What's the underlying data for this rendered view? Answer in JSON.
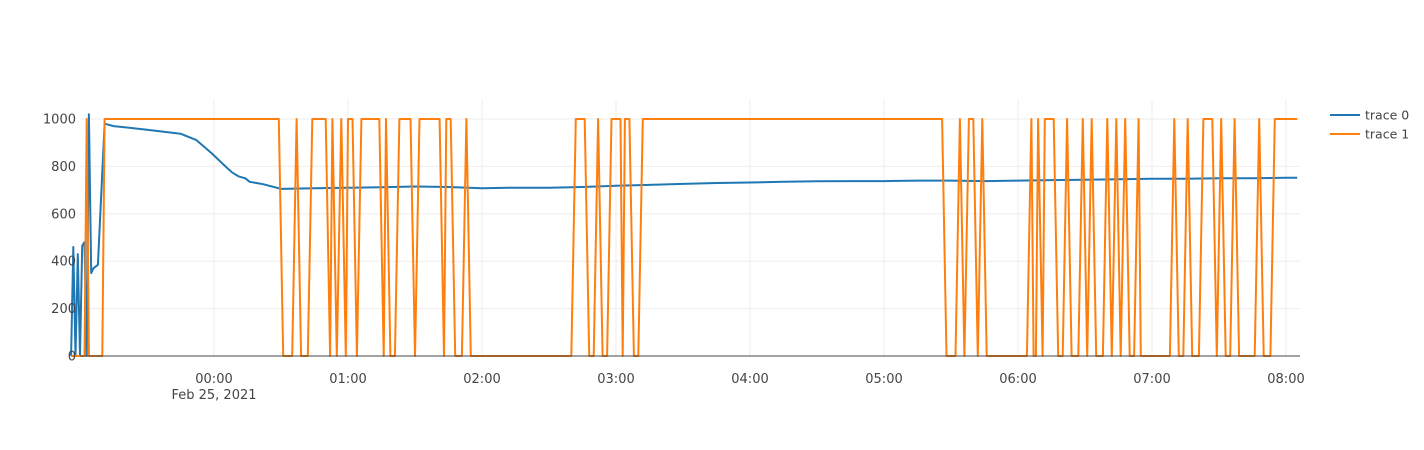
{
  "chart_data": {
    "type": "line",
    "x_axis": {
      "ticks": [
        "00:00",
        "01:00",
        "02:00",
        "03:00",
        "04:00",
        "05:00",
        "06:00",
        "07:00",
        "08:00"
      ],
      "date_label": "Feb 25, 2021",
      "range": [
        "2021-02-24 22:56",
        "2021-02-25 08:05"
      ]
    },
    "y_axis": {
      "ticks": [
        "0",
        "200",
        "400",
        "600",
        "800",
        "1000"
      ],
      "range": [
        0,
        1080
      ]
    },
    "grid": true,
    "legend_placement": "top-right",
    "series": [
      {
        "name": "trace 0",
        "color": "#1f77b4",
        "points": [
          [
            "2021-02-24 22:56",
            0
          ],
          [
            "2021-02-24 22:57",
            460
          ],
          [
            "2021-02-24 22:58",
            0
          ],
          [
            "2021-02-24 22:59",
            430
          ],
          [
            "2021-02-24 23:00",
            0
          ],
          [
            "2021-02-24 23:01",
            465
          ],
          [
            "2021-02-24 23:02",
            480
          ],
          [
            "2021-02-24 23:03",
            0
          ],
          [
            "2021-02-24 23:04",
            1020
          ],
          [
            "2021-02-24 23:05",
            350
          ],
          [
            "2021-02-24 23:06",
            370
          ],
          [
            "2021-02-24 23:08",
            385
          ],
          [
            "2021-02-24 23:11",
            980
          ],
          [
            "2021-02-24 23:15",
            970
          ],
          [
            "2021-02-24 23:30",
            955
          ],
          [
            "2021-02-24 23:45",
            938
          ],
          [
            "2021-02-24 23:52",
            912
          ],
          [
            "2021-02-24 23:59",
            855
          ],
          [
            "2021-02-25 00:04",
            810
          ],
          [
            "2021-02-25 00:08",
            775
          ],
          [
            "2021-02-25 00:11",
            758
          ],
          [
            "2021-02-25 00:14",
            750
          ],
          [
            "2021-02-25 00:16",
            735
          ],
          [
            "2021-02-25 00:22",
            725
          ],
          [
            "2021-02-25 00:30",
            705
          ],
          [
            "2021-02-25 00:45",
            708
          ],
          [
            "2021-02-25 01:00",
            710
          ],
          [
            "2021-02-25 01:15",
            712
          ],
          [
            "2021-02-25 01:30",
            715
          ],
          [
            "2021-02-25 01:45",
            713
          ],
          [
            "2021-02-25 02:00",
            708
          ],
          [
            "2021-02-25 02:15",
            710
          ],
          [
            "2021-02-25 02:30",
            710
          ],
          [
            "2021-02-25 02:45",
            713
          ],
          [
            "2021-02-25 03:00",
            718
          ],
          [
            "2021-02-25 03:15",
            722
          ],
          [
            "2021-02-25 03:30",
            726
          ],
          [
            "2021-02-25 03:45",
            730
          ],
          [
            "2021-02-25 04:00",
            732
          ],
          [
            "2021-02-25 04:15",
            735
          ],
          [
            "2021-02-25 04:30",
            737
          ],
          [
            "2021-02-25 04:45",
            738
          ],
          [
            "2021-02-25 05:00",
            738
          ],
          [
            "2021-02-25 05:15",
            740
          ],
          [
            "2021-02-25 05:30",
            740
          ],
          [
            "2021-02-25 05:45",
            738
          ],
          [
            "2021-02-25 06:00",
            740
          ],
          [
            "2021-02-25 06:15",
            742
          ],
          [
            "2021-02-25 06:30",
            744
          ],
          [
            "2021-02-25 06:45",
            746
          ],
          [
            "2021-02-25 07:00",
            748
          ],
          [
            "2021-02-25 07:15",
            748
          ],
          [
            "2021-02-25 07:30",
            750
          ],
          [
            "2021-02-25 07:45",
            750
          ],
          [
            "2021-02-25 08:00",
            752
          ],
          [
            "2021-02-25 08:05",
            752
          ]
        ]
      },
      {
        "name": "trace 1",
        "color": "#ff7f0e",
        "points": [
          [
            "2021-02-24 22:56",
            0
          ],
          [
            "2021-02-24 23:02",
            0
          ],
          [
            "2021-02-24 23:03",
            1000
          ],
          [
            "2021-02-24 23:04",
            0
          ],
          [
            "2021-02-24 23:05",
            0
          ],
          [
            "2021-02-24 23:10",
            0
          ],
          [
            "2021-02-24 23:11",
            1000
          ],
          [
            "2021-02-25 00:29",
            1000
          ],
          [
            "2021-02-25 00:31",
            0
          ],
          [
            "2021-02-25 00:35",
            0
          ],
          [
            "2021-02-25 00:37",
            1000
          ],
          [
            "2021-02-25 00:39",
            0
          ],
          [
            "2021-02-25 00:42",
            0
          ],
          [
            "2021-02-25 00:44",
            1000
          ],
          [
            "2021-02-25 00:50",
            1000
          ],
          [
            "2021-02-25 00:52",
            0
          ],
          [
            "2021-02-25 00:53",
            1000
          ],
          [
            "2021-02-25 00:55",
            0
          ],
          [
            "2021-02-25 00:57",
            1000
          ],
          [
            "2021-02-25 00:59",
            0
          ],
          [
            "2021-02-25 01:00",
            1000
          ],
          [
            "2021-02-25 01:02",
            1000
          ],
          [
            "2021-02-25 01:04",
            0
          ],
          [
            "2021-02-25 01:06",
            1000
          ],
          [
            "2021-02-25 01:14",
            1000
          ],
          [
            "2021-02-25 01:16",
            0
          ],
          [
            "2021-02-25 01:17",
            1000
          ],
          [
            "2021-02-25 01:19",
            0
          ],
          [
            "2021-02-25 01:21",
            0
          ],
          [
            "2021-02-25 01:23",
            1000
          ],
          [
            "2021-02-25 01:28",
            1000
          ],
          [
            "2021-02-25 01:30",
            0
          ],
          [
            "2021-02-25 01:32",
            1000
          ],
          [
            "2021-02-25 01:41",
            1000
          ],
          [
            "2021-02-25 01:43",
            0
          ],
          [
            "2021-02-25 01:44",
            1000
          ],
          [
            "2021-02-25 01:46",
            1000
          ],
          [
            "2021-02-25 01:48",
            0
          ],
          [
            "2021-02-25 01:51",
            0
          ],
          [
            "2021-02-25 01:53",
            1000
          ],
          [
            "2021-02-25 01:55",
            0
          ],
          [
            "2021-02-25 02:40",
            0
          ],
          [
            "2021-02-25 02:42",
            1000
          ],
          [
            "2021-02-25 02:46",
            1000
          ],
          [
            "2021-02-25 02:48",
            0
          ],
          [
            "2021-02-25 02:50",
            0
          ],
          [
            "2021-02-25 02:52",
            1000
          ],
          [
            "2021-02-25 02:54",
            0
          ],
          [
            "2021-02-25 02:56",
            0
          ],
          [
            "2021-02-25 02:58",
            1000
          ],
          [
            "2021-02-25 03:02",
            1000
          ],
          [
            "2021-02-25 03:03",
            0
          ],
          [
            "2021-02-25 03:04",
            1000
          ],
          [
            "2021-02-25 03:06",
            1000
          ],
          [
            "2021-02-25 03:08",
            0
          ],
          [
            "2021-02-25 03:10",
            0
          ],
          [
            "2021-02-25 03:12",
            1000
          ],
          [
            "2021-02-25 05:26",
            1000
          ],
          [
            "2021-02-25 05:28",
            0
          ],
          [
            "2021-02-25 05:32",
            0
          ],
          [
            "2021-02-25 05:34",
            1000
          ],
          [
            "2021-02-25 05:36",
            0
          ],
          [
            "2021-02-25 05:38",
            1000
          ],
          [
            "2021-02-25 05:40",
            1000
          ],
          [
            "2021-02-25 05:42",
            0
          ],
          [
            "2021-02-25 05:44",
            1000
          ],
          [
            "2021-02-25 05:46",
            0
          ],
          [
            "2021-02-25 06:04",
            0
          ],
          [
            "2021-02-25 06:06",
            1000
          ],
          [
            "2021-02-25 06:07",
            0
          ],
          [
            "2021-02-25 06:08",
            0
          ],
          [
            "2021-02-25 06:09",
            1000
          ],
          [
            "2021-02-25 06:11",
            0
          ],
          [
            "2021-02-25 06:12",
            1000
          ],
          [
            "2021-02-25 06:16",
            1000
          ],
          [
            "2021-02-25 06:18",
            0
          ],
          [
            "2021-02-25 06:20",
            0
          ],
          [
            "2021-02-25 06:22",
            1000
          ],
          [
            "2021-02-25 06:24",
            0
          ],
          [
            "2021-02-25 06:27",
            0
          ],
          [
            "2021-02-25 06:29",
            1000
          ],
          [
            "2021-02-25 06:31",
            0
          ],
          [
            "2021-02-25 06:33",
            1000
          ],
          [
            "2021-02-25 06:35",
            0
          ],
          [
            "2021-02-25 06:38",
            0
          ],
          [
            "2021-02-25 06:40",
            1000
          ],
          [
            "2021-02-25 06:42",
            0
          ],
          [
            "2021-02-25 06:44",
            1000
          ],
          [
            "2021-02-25 06:46",
            0
          ],
          [
            "2021-02-25 06:48",
            1000
          ],
          [
            "2021-02-25 06:50",
            0
          ],
          [
            "2021-02-25 06:52",
            0
          ],
          [
            "2021-02-25 06:54",
            1000
          ],
          [
            "2021-02-25 06:55",
            0
          ],
          [
            "2021-02-25 07:08",
            0
          ],
          [
            "2021-02-25 07:10",
            1000
          ],
          [
            "2021-02-25 07:12",
            0
          ],
          [
            "2021-02-25 07:14",
            0
          ],
          [
            "2021-02-25 07:16",
            1000
          ],
          [
            "2021-02-25 07:18",
            0
          ],
          [
            "2021-02-25 07:21",
            0
          ],
          [
            "2021-02-25 07:23",
            1000
          ],
          [
            "2021-02-25 07:27",
            1000
          ],
          [
            "2021-02-25 07:29",
            0
          ],
          [
            "2021-02-25 07:31",
            1000
          ],
          [
            "2021-02-25 07:33",
            0
          ],
          [
            "2021-02-25 07:35",
            0
          ],
          [
            "2021-02-25 07:37",
            1000
          ],
          [
            "2021-02-25 07:39",
            0
          ],
          [
            "2021-02-25 07:46",
            0
          ],
          [
            "2021-02-25 07:48",
            1000
          ],
          [
            "2021-02-25 07:50",
            0
          ],
          [
            "2021-02-25 07:53",
            0
          ],
          [
            "2021-02-25 07:55",
            1000
          ],
          [
            "2021-02-25 08:00",
            1000
          ],
          [
            "2021-02-25 08:05",
            1000
          ]
        ]
      }
    ]
  }
}
